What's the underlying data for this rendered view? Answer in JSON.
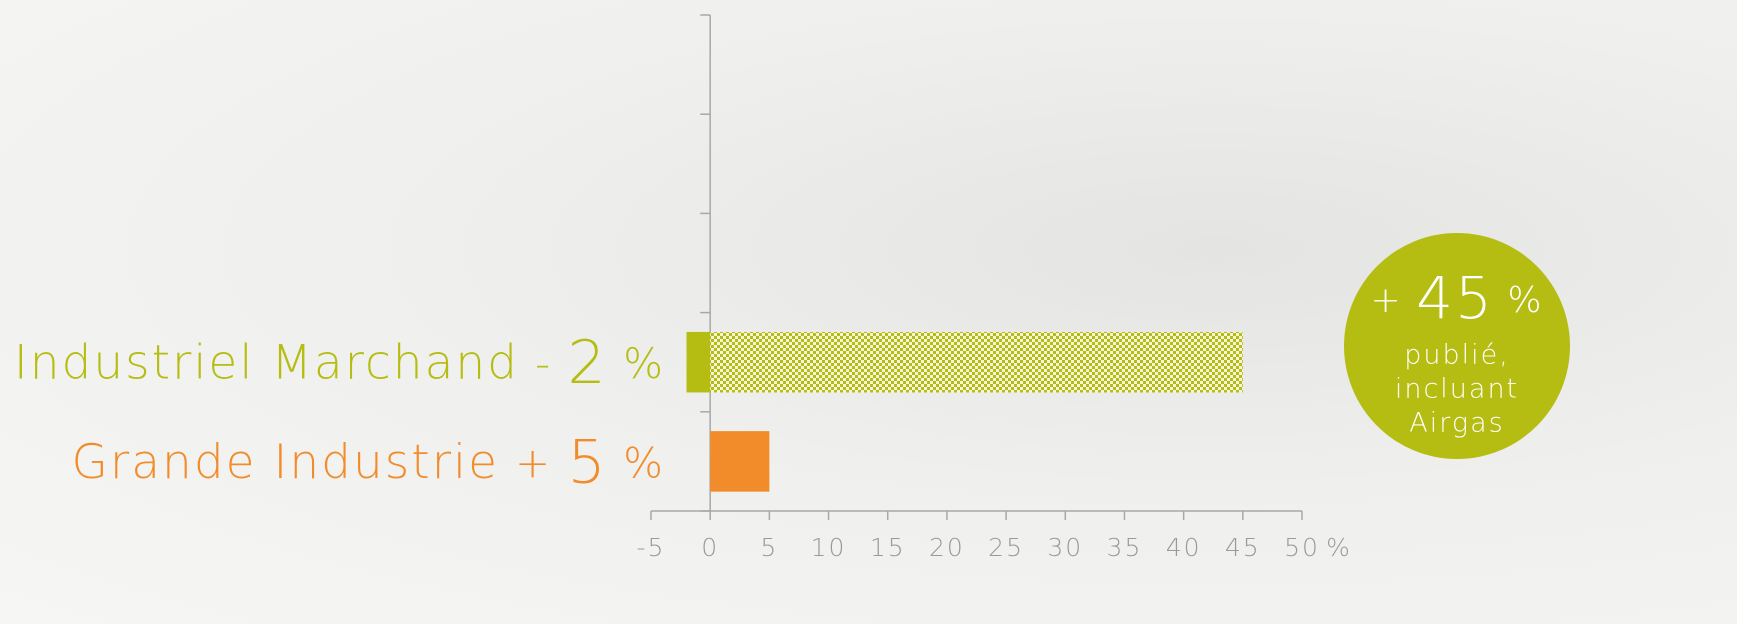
{
  "chart_data": {
    "type": "bar",
    "orientation": "horizontal",
    "categories": [
      null,
      null,
      null,
      "Industriel Marchand",
      "Grande Industrie"
    ],
    "category_colors": [
      "#b5bd12",
      "#b5bd12",
      "#b5bd12",
      "#b5bd12",
      "#f28c2a"
    ],
    "series": [
      {
        "values": [
          null,
          null,
          null,
          -2,
          5
        ],
        "value_labels": [
          null,
          null,
          null,
          "- 2 %",
          "+ 5 %"
        ],
        "color": "#b5bd12",
        "colors": [
          null,
          null,
          null,
          "#b5bd12",
          "#f28c2a"
        ],
        "pattern": "solid"
      },
      {
        "values": [
          null,
          null,
          null,
          45,
          null
        ],
        "value_labels": [
          null,
          null,
          null,
          "+ 45 %",
          null
        ],
        "color": "#b5bd12",
        "pattern": "hatched"
      }
    ],
    "annotation": {
      "lines": [
        "publié,",
        "incluant",
        "Airgas"
      ],
      "color": "#b5bd12"
    },
    "xlabel": "%",
    "xlim": [
      -5,
      50
    ],
    "xticks": [
      -5,
      0,
      5,
      10,
      15,
      20,
      25,
      30,
      35,
      40,
      45,
      50
    ],
    "grid": false
  }
}
